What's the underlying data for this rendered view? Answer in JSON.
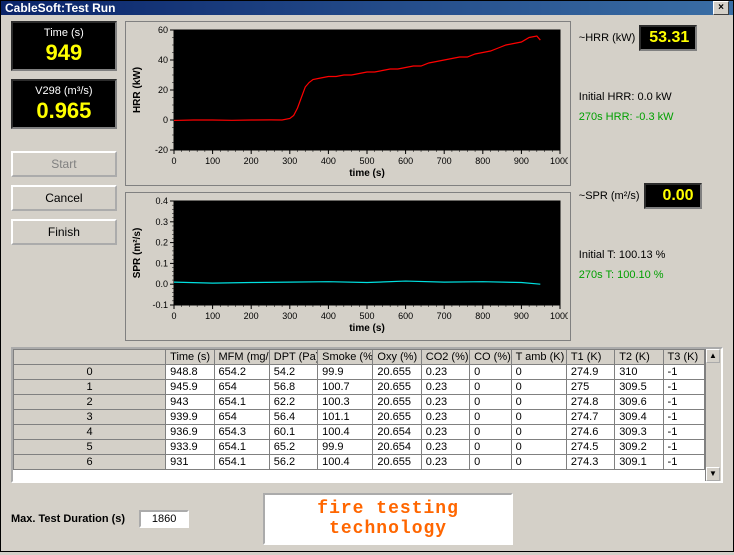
{
  "window": {
    "title": "CableSoft:Test Run"
  },
  "left": {
    "time_label": "Time (s)",
    "time_value": "949",
    "v298_label": "V298 (m³/s)",
    "v298_value": "0.965",
    "start_label": "Start",
    "cancel_label": "Cancel",
    "finish_label": "Finish"
  },
  "right": {
    "hrr_label": "~HRR (kW)",
    "hrr_value": "53.31",
    "initial_hrr": "Initial HRR: 0.0 kW",
    "initial_hrr_color": "#000000",
    "t270_hrr": "270s HRR: -0.3 kW",
    "t270_hrr_color": "#00a000",
    "spr_label": "~SPR (m²/s)",
    "spr_value": "0.00",
    "initial_t": "Initial T: 100.13 %",
    "initial_t_color": "#000000",
    "t270_t": "270s T: 100.10 %",
    "t270_t_color": "#00a000"
  },
  "charts": {
    "hrr": {
      "type": "line",
      "plot_bg": "#000000",
      "line_color": "#ff0000",
      "xlabel": "time (s)",
      "ylabel": "HRR (kW)",
      "xlim": [
        0,
        1000
      ],
      "xtick_step": 100,
      "x_minor_step": 20,
      "ylim": [
        -20,
        60
      ],
      "ytick_step": 20,
      "y_minor_step": 5,
      "grid_color": "#404040",
      "axis_fontsize": 9,
      "label_fontsize": 10,
      "series": {
        "x": [
          0,
          50,
          100,
          150,
          200,
          250,
          280,
          300,
          310,
          320,
          330,
          340,
          350,
          360,
          380,
          400,
          420,
          440,
          460,
          480,
          500,
          520,
          540,
          560,
          580,
          600,
          620,
          640,
          660,
          680,
          700,
          720,
          740,
          760,
          780,
          800,
          820,
          840,
          860,
          880,
          900,
          920,
          940,
          949
        ],
        "y": [
          -0.3,
          0,
          0,
          -0.2,
          0,
          0.1,
          0,
          1,
          3,
          8,
          15,
          22,
          25,
          27,
          28,
          29,
          29,
          30,
          30,
          31,
          32,
          32,
          33,
          34,
          34,
          35,
          36,
          36,
          38,
          39,
          40,
          41,
          42,
          42,
          44,
          45,
          46,
          48,
          50,
          51,
          52,
          55,
          56,
          53.3
        ]
      }
    },
    "spr": {
      "type": "line",
      "plot_bg": "#000000",
      "line_color": "#00e0e0",
      "xlabel": "time (s)",
      "ylabel": "SPR (m²/s)",
      "xlim": [
        0,
        1000
      ],
      "xtick_step": 100,
      "x_minor_step": 20,
      "ylim": [
        -0.1,
        0.4
      ],
      "ytick_step": 0.1,
      "y_minor_step": 0.02,
      "grid_color": "#404040",
      "axis_fontsize": 9,
      "label_fontsize": 10,
      "series": {
        "x": [
          0,
          100,
          200,
          300,
          400,
          500,
          600,
          700,
          800,
          900,
          949
        ],
        "y": [
          0.01,
          0.005,
          0.008,
          0.01,
          0.012,
          0.008,
          0.015,
          0.01,
          0.012,
          0.008,
          0.0
        ]
      }
    }
  },
  "table": {
    "columns": [
      "Time (s)",
      "MFM (mg/s)",
      "DPT (Pa)",
      "Smoke (%)",
      "Oxy (%)",
      "CO2 (%)",
      "CO (%)",
      "T amb (K)",
      "T1 (K)",
      "T2 (K)",
      "T3 (K)"
    ],
    "col_widths_pct": [
      7,
      8,
      7,
      8,
      7,
      7,
      6,
      8,
      7,
      7,
      6
    ],
    "row_headers": [
      "0",
      "1",
      "2",
      "3",
      "4",
      "5",
      "6"
    ],
    "rows": [
      [
        "948.8",
        "654.2",
        "54.2",
        "99.9",
        "20.655",
        "0.23",
        "0",
        "0",
        "274.9",
        "310",
        "-1"
      ],
      [
        "945.9",
        "654",
        "56.8",
        "100.7",
        "20.655",
        "0.23",
        "0",
        "0",
        "275",
        "309.5",
        "-1"
      ],
      [
        "943",
        "654.1",
        "62.2",
        "100.3",
        "20.655",
        "0.23",
        "0",
        "0",
        "274.8",
        "309.6",
        "-1"
      ],
      [
        "939.9",
        "654",
        "56.4",
        "101.1",
        "20.655",
        "0.23",
        "0",
        "0",
        "274.7",
        "309.4",
        "-1"
      ],
      [
        "936.9",
        "654.3",
        "60.1",
        "100.4",
        "20.654",
        "0.23",
        "0",
        "0",
        "274.6",
        "309.3",
        "-1"
      ],
      [
        "933.9",
        "654.1",
        "65.2",
        "99.9",
        "20.654",
        "0.23",
        "0",
        "0",
        "274.5",
        "309.2",
        "-1"
      ],
      [
        "931",
        "654.1",
        "56.2",
        "100.4",
        "20.655",
        "0.23",
        "0",
        "0",
        "274.3",
        "309.1",
        "-1"
      ]
    ]
  },
  "bottom": {
    "duration_label": "Max. Test Duration (s)",
    "duration_value": "1860",
    "logo_text": "fire testing technology"
  }
}
